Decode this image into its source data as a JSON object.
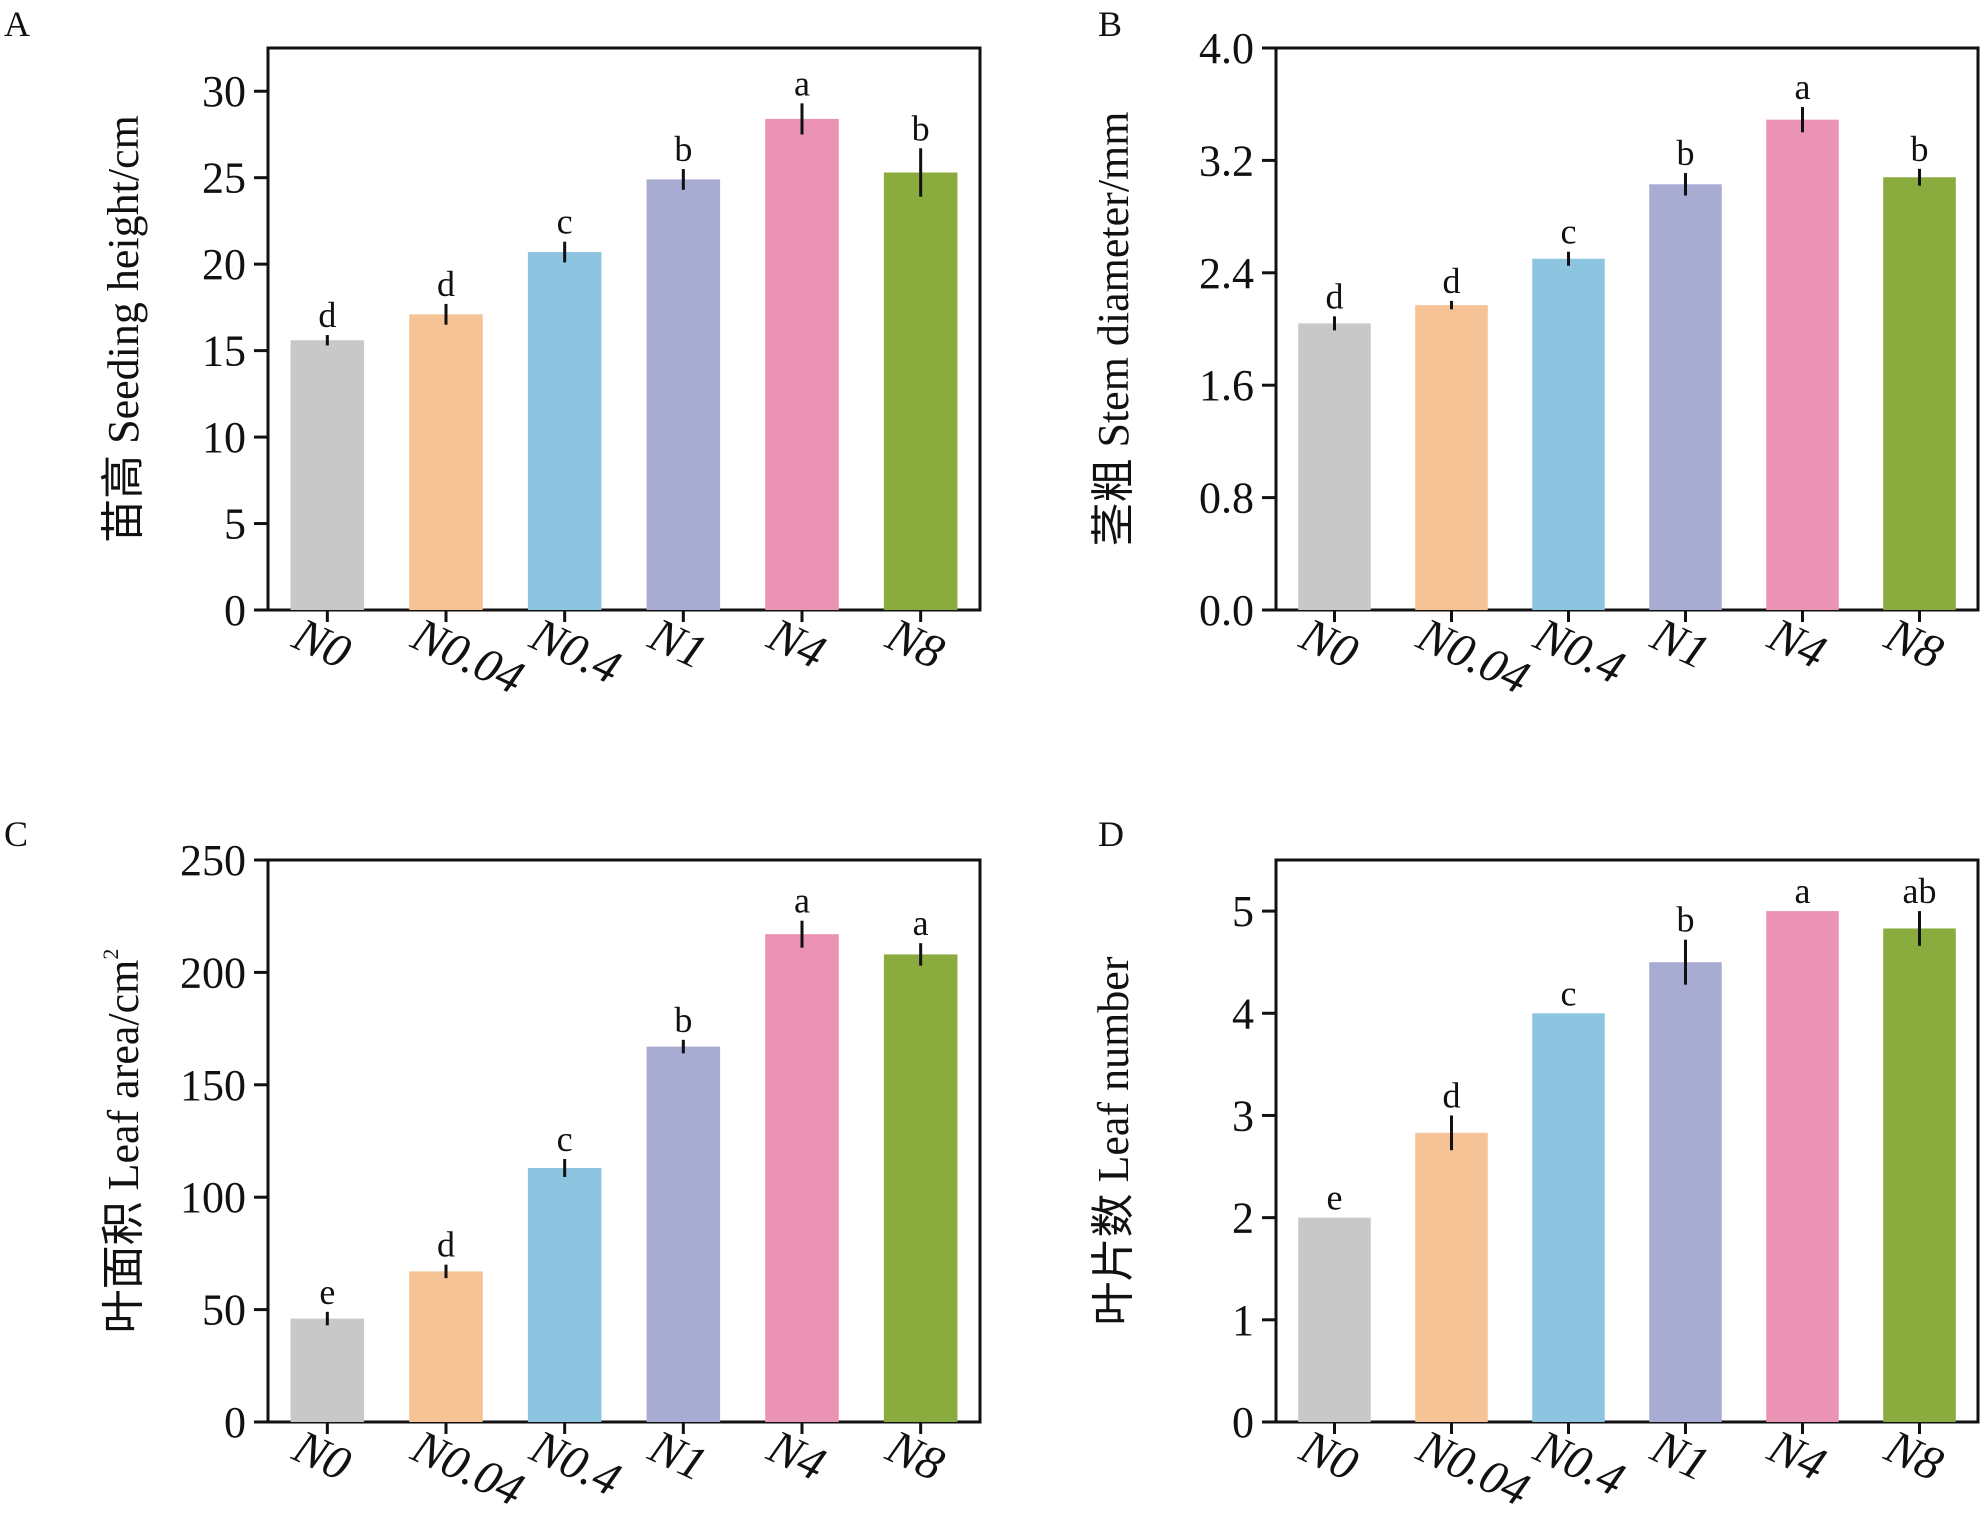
{
  "chart_data": [
    {
      "panel": "A",
      "type": "bar",
      "ylabel": "苗高 Seeding height/cm",
      "categories": [
        "N0",
        "N0.04",
        "N0.4",
        "N1",
        "N4",
        "N8"
      ],
      "values": [
        15.6,
        17.1,
        20.7,
        24.9,
        28.4,
        25.3
      ],
      "errors": [
        0.3,
        0.6,
        0.6,
        0.6,
        0.9,
        1.4
      ],
      "letters": [
        "d",
        "d",
        "c",
        "b",
        "a",
        "b"
      ],
      "yticks": [
        "0",
        "5",
        "10",
        "15",
        "20",
        "25",
        "30"
      ],
      "ylim": [
        0,
        32.5
      ],
      "grid": false
    },
    {
      "panel": "B",
      "type": "bar",
      "ylabel": "茎粗 Stem diameter/mm",
      "categories": [
        "N0",
        "N0.04",
        "N0.4",
        "N1",
        "N4",
        "N8"
      ],
      "values": [
        2.04,
        2.17,
        2.5,
        3.03,
        3.49,
        3.08
      ],
      "errors": [
        0.05,
        0.03,
        0.05,
        0.08,
        0.09,
        0.06
      ],
      "letters": [
        "d",
        "d",
        "c",
        "b",
        "a",
        "b"
      ],
      "yticks": [
        "0.0",
        "0.8",
        "1.6",
        "2.4",
        "3.2",
        "4.0"
      ],
      "ylim": [
        0,
        4.0
      ],
      "grid": false
    },
    {
      "panel": "C",
      "type": "bar",
      "ylabel": "叶面积 Leaf area/cm",
      "ylabel_sup": "2",
      "categories": [
        "N0",
        "N0.04",
        "N0.4",
        "N1",
        "N4",
        "N8"
      ],
      "values": [
        46,
        67,
        113,
        167,
        217,
        208
      ],
      "errors": [
        3,
        3,
        4,
        3,
        6,
        5
      ],
      "letters": [
        "e",
        "d",
        "c",
        "b",
        "a",
        "a"
      ],
      "yticks": [
        "0",
        "50",
        "100",
        "150",
        "200",
        "250"
      ],
      "ylim": [
        0,
        250
      ],
      "grid": false
    },
    {
      "panel": "D",
      "type": "bar",
      "ylabel": "叶片数 Leaf number",
      "categories": [
        "N0",
        "N0.04",
        "N0.4",
        "N1",
        "N4",
        "N8"
      ],
      "values": [
        2.0,
        2.83,
        4.0,
        4.5,
        5.0,
        4.83
      ],
      "errors": [
        0,
        0.17,
        0,
        0.22,
        0,
        0.17
      ],
      "letters": [
        "e",
        "d",
        "c",
        "b",
        "a",
        "ab"
      ],
      "yticks": [
        "0",
        "1",
        "2",
        "3",
        "4",
        "5"
      ],
      "ylim": [
        0,
        5.5
      ],
      "grid": false
    }
  ],
  "colors": [
    "#c8c8c8",
    "#f6c396",
    "#8dc5e1",
    "#a9acd2",
    "#ea93b4",
    "#8aab3e"
  ]
}
